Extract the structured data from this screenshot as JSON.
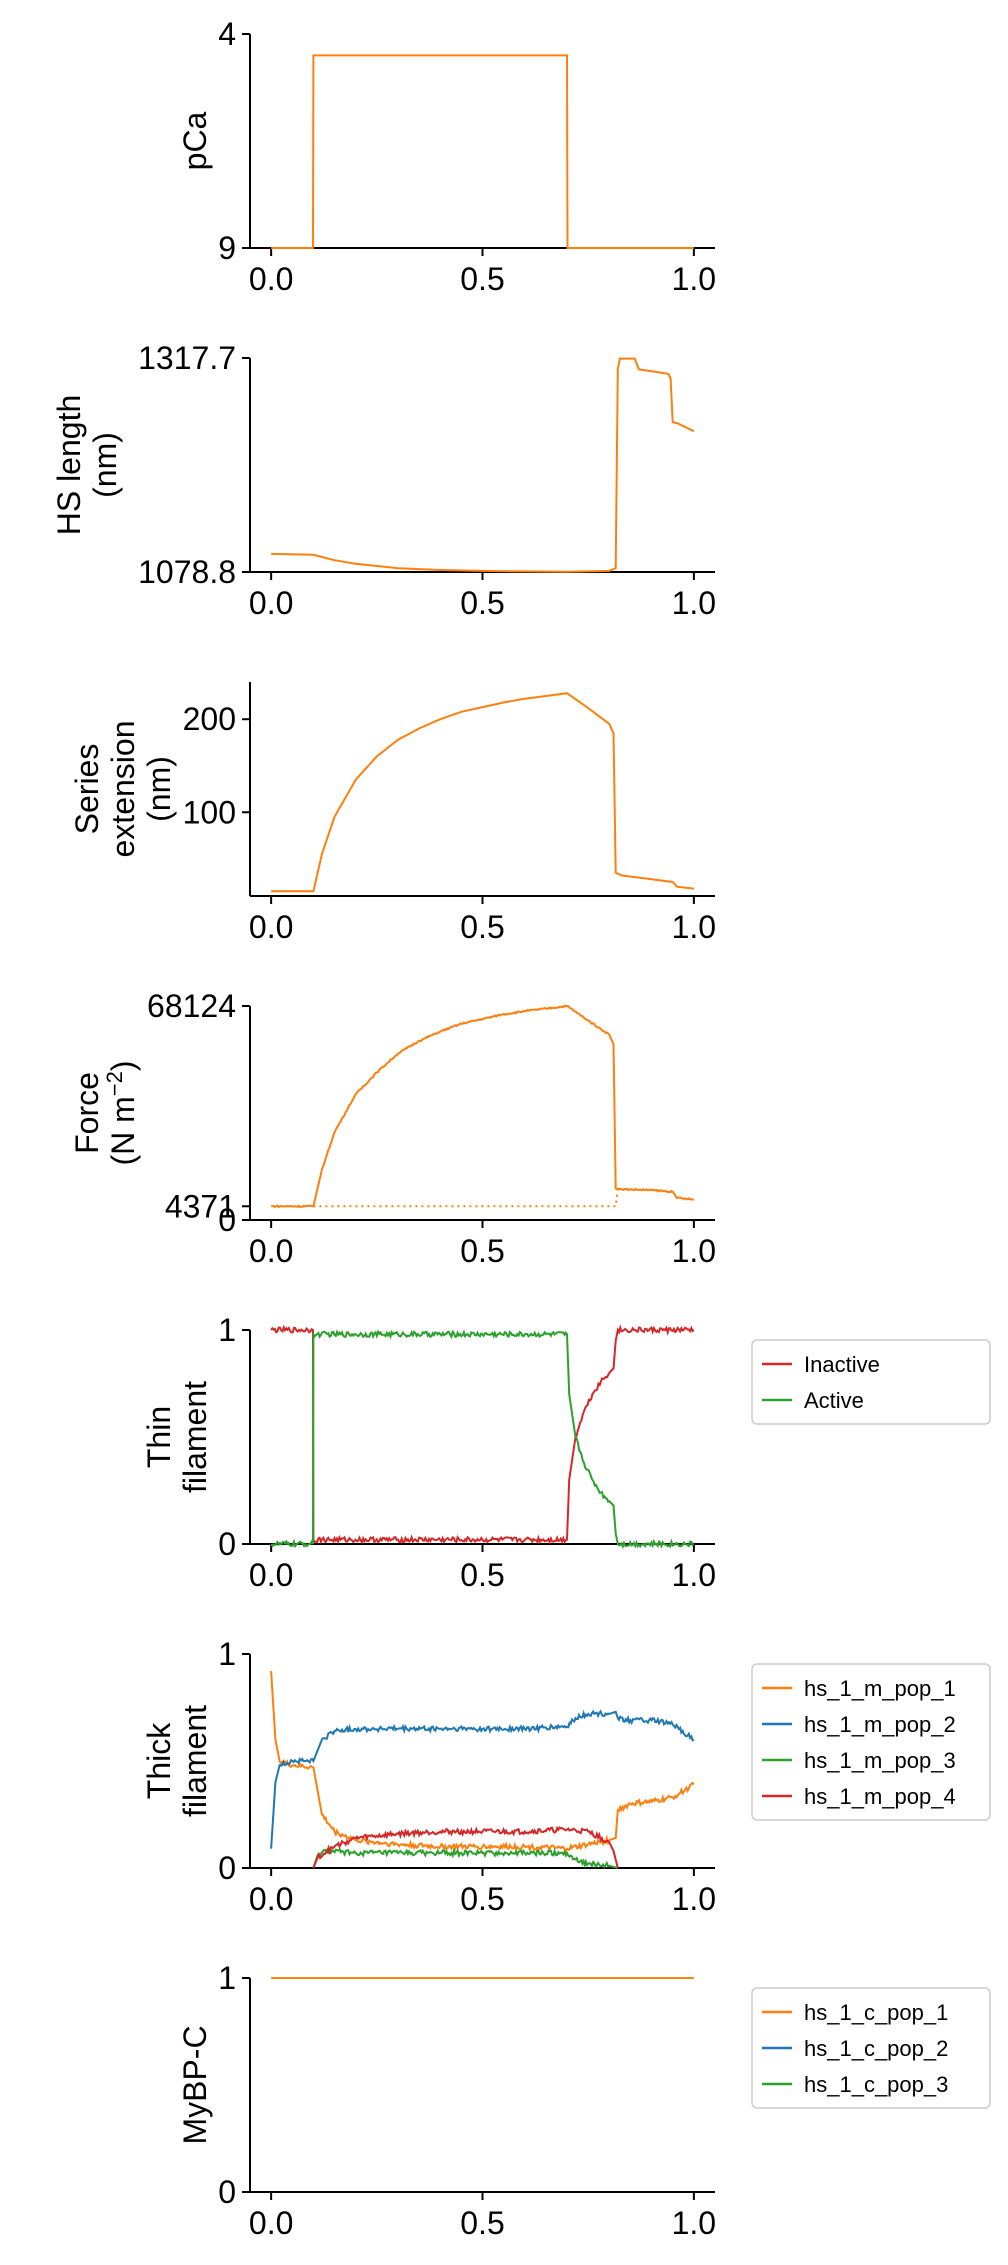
{
  "chart_data": [
    {
      "type": "line",
      "title": "",
      "ylabel_lines": [
        "pCa"
      ],
      "ylabel_sup": "",
      "xlim": [
        -0.05,
        1.05
      ],
      "ylim": [
        9,
        4
      ],
      "xticks": [
        0.0,
        0.5,
        1.0
      ],
      "xtick_labels": [
        "0.0",
        "0.5",
        "1.0"
      ],
      "yticks": [
        4,
        9
      ],
      "ytick_labels": [
        "4",
        "9"
      ],
      "legend": false,
      "series": [
        {
          "name": "pCa",
          "color": "#ff7f0e",
          "style": "solid",
          "x": [
            0.0,
            0.099,
            0.1,
            0.7,
            0.701,
            1.0
          ],
          "y": [
            9,
            9,
            4.5,
            4.5,
            9,
            9
          ]
        }
      ]
    },
    {
      "type": "line",
      "ylabel_lines": [
        "HS length",
        "(nm)"
      ],
      "ylabel_sup": "",
      "xlim": [
        -0.05,
        1.05
      ],
      "ylim": [
        1078.8,
        1317.7
      ],
      "xticks": [
        0.0,
        0.5,
        1.0
      ],
      "xtick_labels": [
        "0.0",
        "0.5",
        "1.0"
      ],
      "yticks": [
        1078.8,
        1317.7
      ],
      "ytick_labels": [
        "1078.8",
        "1317.7"
      ],
      "legend": false,
      "series": [
        {
          "name": "HS length",
          "color": "#ff7f0e",
          "style": "solid",
          "x": [
            0.0,
            0.1,
            0.15,
            0.2,
            0.3,
            0.4,
            0.5,
            0.6,
            0.7,
            0.8,
            0.815,
            0.82,
            0.825,
            0.86,
            0.87,
            0.9,
            0.94,
            0.945,
            0.95,
            0.96,
            1.0
          ],
          "y": [
            1099,
            1098,
            1092,
            1088,
            1083,
            1081,
            1080,
            1079.5,
            1079,
            1080,
            1083,
            1305,
            1317,
            1317,
            1305,
            1303,
            1300,
            1295,
            1246,
            1245,
            1236
          ]
        }
      ]
    },
    {
      "type": "line",
      "ylabel_lines": [
        "Series",
        "extension",
        "(nm)"
      ],
      "ylabel_sup": "",
      "xlim": [
        -0.05,
        1.05
      ],
      "ylim": [
        10,
        240
      ],
      "xticks": [
        0.0,
        0.5,
        1.0
      ],
      "xtick_labels": [
        "0.0",
        "0.5",
        "1.0"
      ],
      "yticks": [
        100,
        200
      ],
      "ytick_labels": [
        "100",
        "200"
      ],
      "legend": false,
      "series": [
        {
          "name": "Series extension",
          "color": "#ff7f0e",
          "style": "solid",
          "x": [
            0.0,
            0.1,
            0.12,
            0.15,
            0.2,
            0.25,
            0.3,
            0.35,
            0.4,
            0.45,
            0.5,
            0.55,
            0.6,
            0.65,
            0.7,
            0.75,
            0.8,
            0.81,
            0.815,
            0.83,
            0.9,
            0.95,
            0.96,
            1.0
          ],
          "y": [
            15,
            15,
            55,
            95,
            135,
            160,
            178,
            190,
            200,
            208,
            213,
            218,
            222,
            225,
            228,
            212,
            195,
            185,
            35,
            32,
            28,
            25,
            20,
            18
          ]
        }
      ]
    },
    {
      "type": "line",
      "ylabel_lines": [
        "Force",
        "(N m"
      ],
      "ylabel_sup": "−2",
      "xlim": [
        -0.05,
        1.05
      ],
      "ylim": [
        0,
        68124
      ],
      "xticks": [
        0.0,
        0.5,
        1.0
      ],
      "xtick_labels": [
        "0.0",
        "0.5",
        "1.0"
      ],
      "yticks": [
        0,
        4371,
        68124
      ],
      "ytick_labels": [
        "0",
        "4371",
        "68124"
      ],
      "legend": false,
      "series": [
        {
          "name": "Force",
          "color": "#ff7f0e",
          "style": "solid",
          "x": [
            0.0,
            0.1,
            0.12,
            0.15,
            0.2,
            0.25,
            0.3,
            0.35,
            0.4,
            0.45,
            0.5,
            0.55,
            0.6,
            0.65,
            0.7,
            0.75,
            0.8,
            0.81,
            0.815,
            0.83,
            0.9,
            0.95,
            0.96,
            1.0
          ],
          "y": [
            4371,
            4371,
            16000,
            28000,
            40000,
            47000,
            53000,
            57000,
            60000,
            62500,
            64000,
            65500,
            66500,
            67300,
            68124,
            63500,
            59000,
            56000,
            10000,
            9800,
            9500,
            9000,
            7000,
            6500
          ]
        },
        {
          "name": "Force baseline",
          "color": "#ff7f0e",
          "style": "dotted",
          "x": [
            0.1,
            0.8,
            0.815,
            0.82
          ],
          "y": [
            4371,
            4371,
            4371,
            10000
          ]
        }
      ]
    },
    {
      "type": "line",
      "ylabel_lines": [
        "Thin",
        "filament"
      ],
      "ylabel_sup": "",
      "xlim": [
        -0.05,
        1.05
      ],
      "ylim": [
        0,
        1
      ],
      "xticks": [
        0.0,
        0.5,
        1.0
      ],
      "xtick_labels": [
        "0.0",
        "0.5",
        "1.0"
      ],
      "yticks": [
        0,
        1
      ],
      "ytick_labels": [
        "0",
        "1"
      ],
      "legend": true,
      "series": [
        {
          "name": "Inactive",
          "color": "#d62728",
          "style": "solid",
          "x": [
            0.0,
            0.099,
            0.1,
            0.2,
            0.3,
            0.4,
            0.5,
            0.6,
            0.7,
            0.705,
            0.72,
            0.74,
            0.76,
            0.78,
            0.8,
            0.81,
            0.815,
            0.82,
            1.0
          ],
          "y": [
            1,
            1,
            0.02,
            0.02,
            0.02,
            0.02,
            0.02,
            0.02,
            0.02,
            0.3,
            0.5,
            0.62,
            0.7,
            0.76,
            0.8,
            0.82,
            0.95,
            1,
            1
          ]
        },
        {
          "name": "Active",
          "color": "#2ca02c",
          "style": "solid",
          "x": [
            0.0,
            0.099,
            0.1,
            0.2,
            0.3,
            0.4,
            0.5,
            0.6,
            0.7,
            0.705,
            0.72,
            0.74,
            0.76,
            0.78,
            0.8,
            0.81,
            0.815,
            0.82,
            1.0
          ],
          "y": [
            0,
            0,
            0.98,
            0.98,
            0.98,
            0.98,
            0.98,
            0.98,
            0.98,
            0.7,
            0.5,
            0.38,
            0.3,
            0.24,
            0.2,
            0.18,
            0.05,
            0,
            0
          ]
        }
      ]
    },
    {
      "type": "line",
      "ylabel_lines": [
        "Thick",
        "filament"
      ],
      "ylabel_sup": "",
      "xlim": [
        -0.05,
        1.05
      ],
      "ylim": [
        0,
        1
      ],
      "xticks": [
        0.0,
        0.5,
        1.0
      ],
      "xtick_labels": [
        "0.0",
        "0.5",
        "1.0"
      ],
      "yticks": [
        0,
        1
      ],
      "ytick_labels": [
        "0",
        "1"
      ],
      "legend": true,
      "series": [
        {
          "name": "hs_1_m_pop_1",
          "color": "#ff7f0e",
          "style": "solid",
          "x": [
            0.0,
            0.01,
            0.02,
            0.05,
            0.1,
            0.12,
            0.15,
            0.2,
            0.3,
            0.4,
            0.5,
            0.6,
            0.7,
            0.75,
            0.8,
            0.815,
            0.82,
            0.85,
            0.9,
            0.95,
            1.0
          ],
          "y": [
            0.92,
            0.6,
            0.5,
            0.48,
            0.47,
            0.25,
            0.17,
            0.13,
            0.11,
            0.1,
            0.1,
            0.1,
            0.09,
            0.11,
            0.13,
            0.14,
            0.27,
            0.3,
            0.31,
            0.33,
            0.39
          ]
        },
        {
          "name": "hs_1_m_pop_2",
          "color": "#1f77b4",
          "style": "solid",
          "x": [
            0.0,
            0.01,
            0.02,
            0.05,
            0.1,
            0.12,
            0.15,
            0.2,
            0.3,
            0.4,
            0.5,
            0.6,
            0.7,
            0.72,
            0.75,
            0.8,
            0.815,
            0.82,
            0.85,
            0.9,
            0.95,
            1.0
          ],
          "y": [
            0.09,
            0.4,
            0.48,
            0.5,
            0.5,
            0.6,
            0.64,
            0.65,
            0.65,
            0.65,
            0.65,
            0.65,
            0.66,
            0.7,
            0.72,
            0.72,
            0.73,
            0.7,
            0.69,
            0.69,
            0.67,
            0.6
          ]
        },
        {
          "name": "hs_1_m_pop_3",
          "color": "#2ca02c",
          "style": "solid",
          "x": [
            0.1,
            0.11,
            0.13,
            0.2,
            0.3,
            0.4,
            0.5,
            0.6,
            0.7,
            0.72,
            0.75,
            0.8,
            0.82
          ],
          "y": [
            0.0,
            0.06,
            0.08,
            0.07,
            0.07,
            0.07,
            0.07,
            0.07,
            0.07,
            0.04,
            0.02,
            0.01,
            0.0
          ]
        },
        {
          "name": "hs_1_m_pop_4",
          "color": "#d62728",
          "style": "solid",
          "x": [
            0.1,
            0.11,
            0.15,
            0.2,
            0.3,
            0.4,
            0.5,
            0.6,
            0.7,
            0.75,
            0.8,
            0.81,
            0.82
          ],
          "y": [
            0.0,
            0.05,
            0.1,
            0.14,
            0.16,
            0.17,
            0.17,
            0.17,
            0.18,
            0.17,
            0.12,
            0.08,
            0.0
          ]
        }
      ]
    },
    {
      "type": "line",
      "ylabel_lines": [
        "MyBP-C"
      ],
      "ylabel_sup": "",
      "xlim": [
        -0.05,
        1.05
      ],
      "ylim": [
        0,
        1
      ],
      "xticks": [
        0.0,
        0.5,
        1.0
      ],
      "xtick_labels": [
        "0.0",
        "0.5",
        "1.0"
      ],
      "yticks": [
        0,
        1
      ],
      "ytick_labels": [
        "0",
        "1"
      ],
      "legend": true,
      "series": [
        {
          "name": "hs_1_c_pop_1",
          "color": "#ff7f0e",
          "style": "solid",
          "x": [
            0.0,
            1.0
          ],
          "y": [
            1,
            1
          ]
        },
        {
          "name": "hs_1_c_pop_2",
          "color": "#1f77b4",
          "style": "solid",
          "x": [],
          "y": []
        },
        {
          "name": "hs_1_c_pop_3",
          "color": "#2ca02c",
          "style": "solid",
          "x": [],
          "y": []
        }
      ]
    }
  ]
}
